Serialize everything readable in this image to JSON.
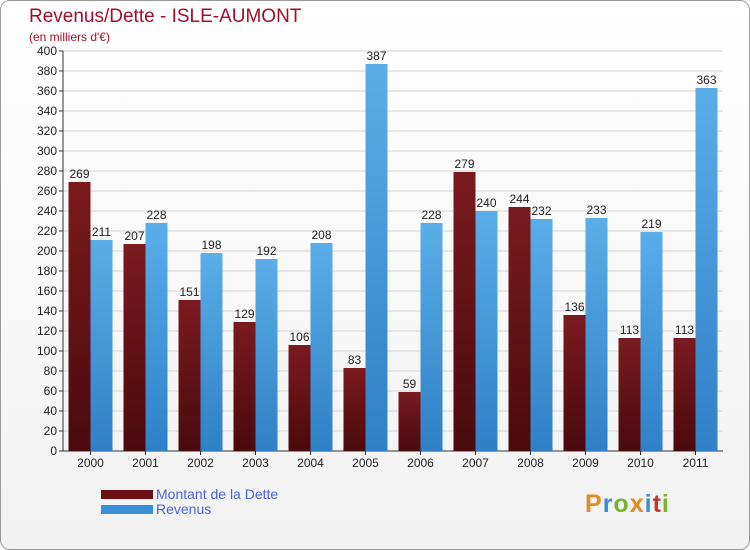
{
  "colors": {
    "dette": "#6b1015",
    "revenus": "#3a90d6",
    "title": "#a1102a",
    "legend_text": "#4a62d8"
  },
  "chart_data": {
    "type": "bar",
    "title": "Revenus/Dette - ISLE-AUMONT",
    "subtitle": "(en milliers d'€)",
    "xlabel": "",
    "ylabel": "",
    "ylim": [
      0,
      400
    ],
    "ytick_step": 20,
    "grid": true,
    "legend_position": "bottom-left",
    "categories": [
      "2000",
      "2001",
      "2002",
      "2003",
      "2004",
      "2005",
      "2006",
      "2007",
      "2008",
      "2009",
      "2010",
      "2011"
    ],
    "series": [
      {
        "name": "Montant de la Dette",
        "values": [
          269,
          207,
          151,
          129,
          106,
          83,
          59,
          279,
          244,
          136,
          113,
          113
        ]
      },
      {
        "name": "Revenus",
        "values": [
          211,
          228,
          198,
          192,
          208,
          387,
          228,
          240,
          232,
          233,
          219,
          363
        ]
      }
    ]
  },
  "logo": {
    "letters": [
      "P",
      "r",
      "o",
      "x",
      "i",
      "t",
      "i"
    ],
    "colors": [
      "#e8891e",
      "#3a8cd8",
      "#7ab32c",
      "#e8891e",
      "#3a8cd8",
      "#c0392b",
      "#7ab32c"
    ]
  }
}
